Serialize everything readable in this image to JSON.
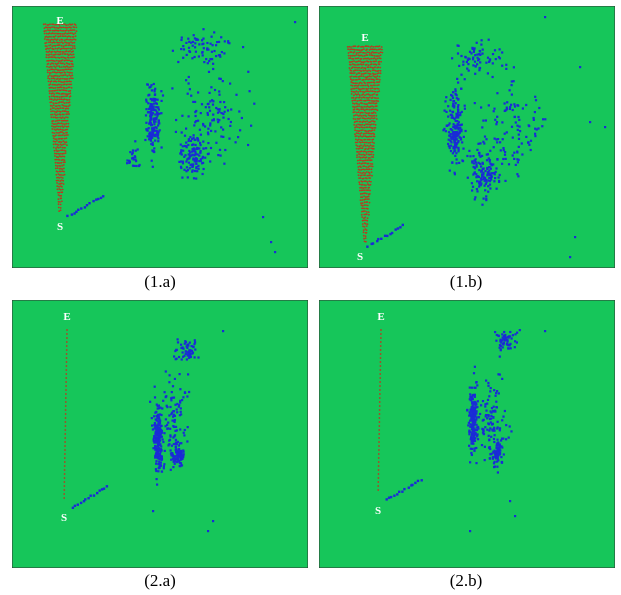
{
  "background_color": "#16c65a",
  "red_point_color": "#b83a1e",
  "blue_point_color": "#1a2bd6",
  "label_color": "#ffffff",
  "start_label": "S",
  "end_label": "E",
  "captions": [
    "(1.a)",
    "(1.b)",
    "(2.a)",
    "(2.b)"
  ]
}
